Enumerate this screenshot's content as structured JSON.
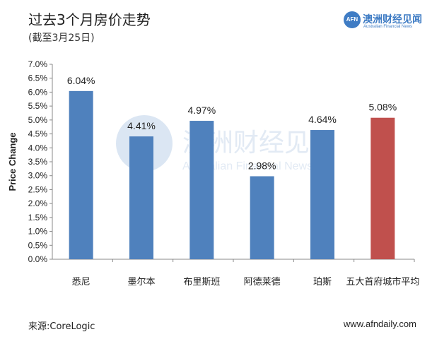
{
  "header": {
    "title": "过去3个月房价走势",
    "subtitle": "(截至3月25日)"
  },
  "logo": {
    "mark": "AFN",
    "name_cn": "澳洲财经见闻",
    "name_en": "Australian Financial News"
  },
  "watermark": {
    "cn": "澳洲财经见闻",
    "en": "Australian Financial News"
  },
  "chart_data": {
    "type": "bar",
    "categories": [
      "悉尼",
      "墨尔本",
      "布里斯班",
      "阿德莱德",
      "珀斯",
      "五大首府城市平均"
    ],
    "values": [
      6.04,
      4.41,
      4.97,
      2.98,
      4.64,
      5.08
    ],
    "value_labels": [
      "6.04%",
      "4.41%",
      "4.97%",
      "2.98%",
      "4.64%",
      "5.08%"
    ],
    "bar_colors": [
      "#4f81bd",
      "#4f81bd",
      "#4f81bd",
      "#4f81bd",
      "#4f81bd",
      "#c0504d"
    ],
    "ylabel": "Price Change",
    "ylim": [
      0,
      7
    ],
    "ytick_step": 0.5,
    "ytick_labels": [
      "0.0%",
      "0.5%",
      "1.0%",
      "1.5%",
      "2.0%",
      "2.5%",
      "3.0%",
      "3.5%",
      "4.0%",
      "4.5%",
      "5.0%",
      "5.5%",
      "6.0%",
      "6.5%",
      "7.0%"
    ],
    "grid": false,
    "legend": "none"
  },
  "footer": {
    "source": "来源:CoreLogic",
    "site": "www.afndaily.com"
  },
  "colors": {
    "accent": "#3f7cc4",
    "bar": "#4f81bd",
    "highlight_bar": "#c0504d"
  }
}
